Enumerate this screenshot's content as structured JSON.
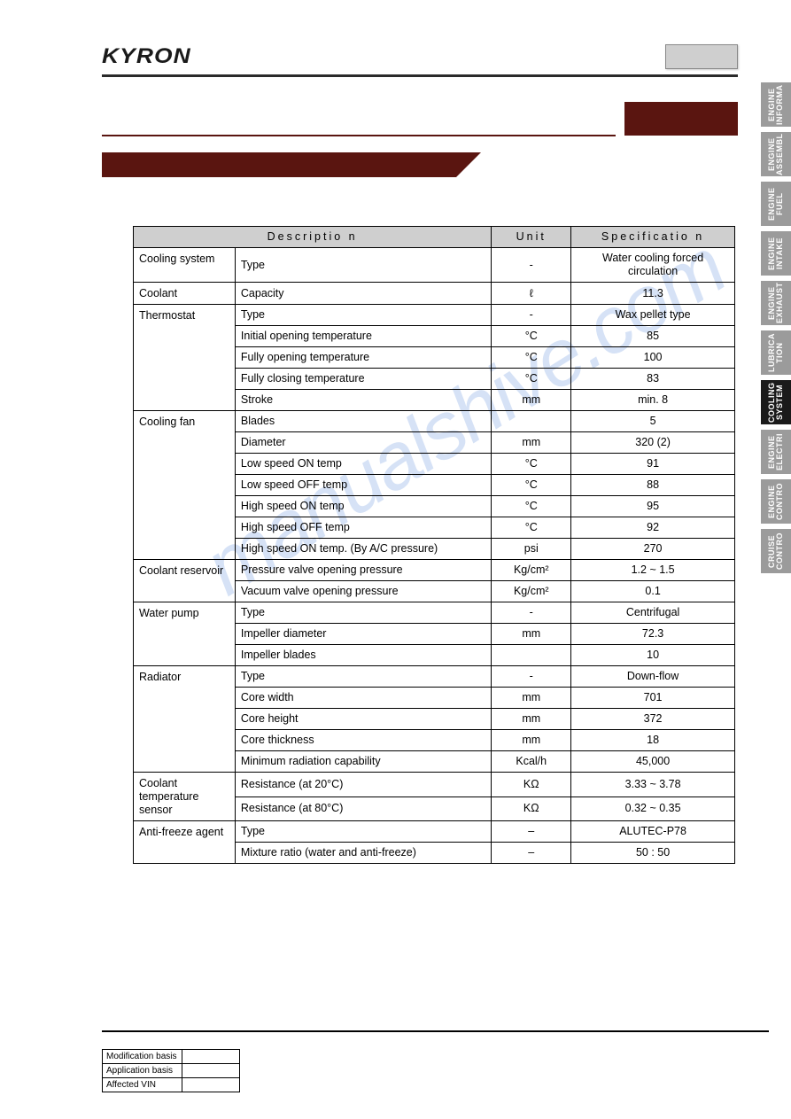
{
  "logo_text": "KYRON",
  "watermark_text": "manualshive.com",
  "spec_table": {
    "headers": {
      "description": "Descriptio n",
      "unit": "Unit",
      "specification": "Specificatio n"
    },
    "groups": [
      {
        "name": "Cooling system",
        "rows": [
          {
            "desc": "Type",
            "unit": "-",
            "val": "Water cooling forced circulation"
          }
        ]
      },
      {
        "name": "Coolant",
        "rows": [
          {
            "desc": "Capacity",
            "unit": "ℓ",
            "val": "11.3"
          }
        ]
      },
      {
        "name": "Thermostat",
        "rows": [
          {
            "desc": "Type",
            "unit": "-",
            "val": "Wax pellet type"
          },
          {
            "desc": "Initial opening temperature",
            "unit": "°C",
            "val": "85"
          },
          {
            "desc": "Fully opening temperature",
            "unit": "°C",
            "val": "100"
          },
          {
            "desc": "Fully closing temperature",
            "unit": "°C",
            "val": "83"
          },
          {
            "desc": "Stroke",
            "unit": "mm",
            "val": "min. 8"
          }
        ]
      },
      {
        "name": "Cooling fan",
        "rows": [
          {
            "desc": "Blades",
            "unit": "",
            "val": "5"
          },
          {
            "desc": "Diameter",
            "unit": "mm",
            "val": "320 (2)"
          },
          {
            "desc": "Low speed ON temp",
            "unit": "°C",
            "val": "91"
          },
          {
            "desc": "Low speed OFF temp",
            "unit": "°C",
            "val": "88"
          },
          {
            "desc": "High speed ON temp",
            "unit": "°C",
            "val": "95"
          },
          {
            "desc": "High speed OFF temp",
            "unit": "°C",
            "val": "92"
          },
          {
            "desc": "High speed ON temp. (By A/C pressure)",
            "unit": "psi",
            "val": "270"
          }
        ]
      },
      {
        "name": "Coolant reservoir",
        "rows": [
          {
            "desc": "Pressure valve opening pressure",
            "unit": "Kg/cm²",
            "val": "1.2 ~ 1.5"
          },
          {
            "desc": "Vacuum valve opening pressure",
            "unit": "Kg/cm²",
            "val": "0.1"
          }
        ]
      },
      {
        "name": "Water pump",
        "rows": [
          {
            "desc": "Type",
            "unit": "-",
            "val": "Centrifugal"
          },
          {
            "desc": "Impeller diameter",
            "unit": "mm",
            "val": "72.3"
          },
          {
            "desc": "Impeller blades",
            "unit": "",
            "val": "10"
          }
        ]
      },
      {
        "name": "Radiator",
        "rows": [
          {
            "desc": "Type",
            "unit": "-",
            "val": "Down-flow"
          },
          {
            "desc": "Core width",
            "unit": "mm",
            "val": "701"
          },
          {
            "desc": "Core height",
            "unit": "mm",
            "val": "372"
          },
          {
            "desc": "Core thickness",
            "unit": "mm",
            "val": "18"
          },
          {
            "desc": "Minimum radiation capability",
            "unit": "Kcal/h",
            "val": "45,000"
          }
        ]
      },
      {
        "name": "Coolant temperature sensor",
        "rows": [
          {
            "desc": "Resistance (at 20°C)",
            "unit": "KΩ",
            "val": "3.33 ~ 3.78"
          },
          {
            "desc": "Resistance (at 80°C)",
            "unit": "KΩ",
            "val": "0.32 ~ 0.35"
          }
        ]
      },
      {
        "name": "Anti-freeze agent",
        "rows": [
          {
            "desc": "Type",
            "unit": "–",
            "val": "ALUTEC-P78"
          },
          {
            "desc": "Mixture ratio (water and anti-freeze)",
            "unit": "–",
            "val": "50 : 50"
          }
        ]
      }
    ]
  },
  "tabs": [
    {
      "label": "ENGINE\nINFORMA",
      "active": false
    },
    {
      "label": "ENGINE\nASSEMBL",
      "active": false
    },
    {
      "label": "ENGINE\nFUEL",
      "active": false
    },
    {
      "label": "ENGINE\nINTAKE",
      "active": false
    },
    {
      "label": "ENGINE\nEXHAUST",
      "active": false
    },
    {
      "label": "LUBRICA\nTION",
      "active": false
    },
    {
      "label": "COOLING\nSYSTEM",
      "active": true
    },
    {
      "label": "ENGINE\nELECTRI",
      "active": false
    },
    {
      "label": "ENGINE\nCONTRO",
      "active": false
    },
    {
      "label": "CRUISE\nCONTRO",
      "active": false
    }
  ],
  "mod_table": {
    "rows": [
      "Modification basis",
      "Application basis",
      "Affected VIN"
    ]
  }
}
